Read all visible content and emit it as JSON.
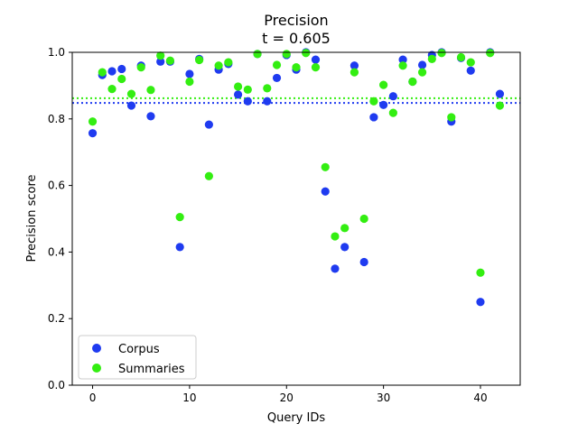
{
  "chart_data": {
    "type": "scatter",
    "title": "Precision",
    "subtitle": "t = 0.605",
    "xlabel": "Query IDs",
    "ylabel": "Precision score",
    "xlim": [
      -2.1,
      44.1
    ],
    "ylim": [
      0.0,
      1.0
    ],
    "xticks": [
      0,
      10,
      20,
      30,
      40
    ],
    "yticks": [
      0.0,
      0.2,
      0.4,
      0.6,
      0.8,
      1.0
    ],
    "grid": false,
    "legend_position": "lower left",
    "x": [
      0,
      1,
      2,
      3,
      4,
      5,
      6,
      7,
      8,
      9,
      10,
      11,
      12,
      13,
      14,
      15,
      16,
      17,
      18,
      19,
      20,
      21,
      22,
      23,
      24,
      25,
      26,
      27,
      28,
      29,
      30,
      31,
      32,
      33,
      34,
      35,
      36,
      37,
      38,
      39,
      40,
      41,
      42
    ],
    "series": [
      {
        "name": "Corpus",
        "color": "#1f3bf0",
        "values": [
          0.757,
          0.932,
          0.943,
          0.95,
          0.84,
          0.96,
          0.808,
          0.972,
          0.972,
          0.415,
          0.935,
          0.98,
          0.783,
          0.948,
          0.965,
          0.873,
          0.853,
          0.995,
          0.853,
          0.923,
          0.992,
          0.948,
          1.0,
          0.978,
          0.582,
          0.35,
          0.415,
          0.96,
          0.37,
          0.805,
          0.842,
          0.868,
          0.978,
          0.912,
          0.962,
          0.992,
          1.0,
          0.792,
          0.983,
          0.945,
          0.25,
          1.0,
          0.875
        ],
        "mean": 0.848
      },
      {
        "name": "Summaries",
        "color": "#33ee11",
        "values": [
          0.792,
          0.94,
          0.89,
          0.92,
          0.875,
          0.955,
          0.887,
          0.99,
          0.975,
          0.505,
          0.912,
          0.977,
          0.628,
          0.96,
          0.97,
          0.897,
          0.888,
          0.995,
          0.892,
          0.962,
          0.995,
          0.955,
          0.998,
          0.955,
          0.655,
          0.447,
          0.472,
          0.94,
          0.5,
          0.853,
          0.902,
          0.818,
          0.96,
          0.912,
          0.94,
          0.98,
          0.998,
          0.805,
          0.985,
          0.97,
          0.338,
          0.998,
          0.84
        ],
        "mean": 0.862
      }
    ]
  }
}
